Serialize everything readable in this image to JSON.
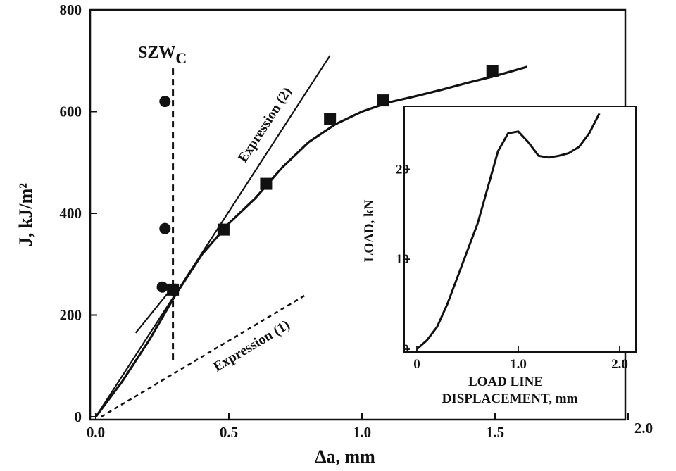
{
  "chart_data": [
    {
      "type": "scatter",
      "xlabel": "Δa, mm",
      "ylabel": "J, kJ/m²",
      "xlim": [
        0,
        2.0
      ],
      "ylim": [
        0,
        800
      ],
      "xticks": [
        "0.0",
        "0.5",
        "1.0",
        "1.5",
        "2.0"
      ],
      "yticks": [
        "0",
        "200",
        "400",
        "600",
        "800"
      ],
      "series": [
        {
          "marker": "circle",
          "points": [
            [
              0.26,
              620
            ],
            [
              0.26,
              370
            ],
            [
              0.25,
              255
            ]
          ]
        },
        {
          "marker": "square",
          "points": [
            [
              0.29,
              250
            ],
            [
              0.48,
              368
            ],
            [
              0.64,
              458
            ],
            [
              0.88,
              585
            ],
            [
              1.08,
              622
            ],
            [
              1.49,
              680
            ]
          ]
        },
        {
          "style": "solid",
          "points": [
            [
              0.0,
              0
            ],
            [
              0.1,
              70
            ],
            [
              0.2,
              150
            ],
            [
              0.3,
              240
            ],
            [
              0.4,
              320
            ],
            [
              0.5,
              380
            ],
            [
              0.6,
              430
            ],
            [
              0.7,
              490
            ],
            [
              0.8,
              540
            ],
            [
              0.9,
              575
            ],
            [
              1.0,
              600
            ],
            [
              1.1,
              618
            ],
            [
              1.2,
              630
            ],
            [
              1.3,
              643
            ],
            [
              1.4,
              657
            ],
            [
              1.5,
              670
            ],
            [
              1.62,
              688
            ]
          ]
        },
        {
          "name": "Expression (2)",
          "style": "solid",
          "points": [
            [
              0.0,
              0
            ],
            [
              0.88,
              710
            ]
          ]
        },
        {
          "name": "Expression (1)",
          "style": "dashed",
          "points": [
            [
              0.02,
              0
            ],
            [
              0.79,
              240
            ]
          ]
        },
        {
          "name": "SZWC",
          "style": "dashed",
          "points": [
            [
              0.29,
              685
            ],
            [
              0.29,
              110
            ]
          ]
        },
        {
          "style": "solid",
          "points": [
            [
              0.15,
              165
            ],
            [
              0.3,
              262
            ]
          ]
        }
      ],
      "annotations": {
        "szw_main": "SZW",
        "szw_sub": "C"
      }
    },
    {
      "type": "line",
      "xlabel_line1": "LOAD LINE",
      "xlabel_line2": "DISPLACEMENT, mm",
      "ylabel": "LOAD, kN",
      "xlim": [
        0,
        2.0
      ],
      "ylim": [
        0,
        27
      ],
      "xticks": [
        "0",
        "1.0",
        "2.0"
      ],
      "yticks": [
        "0",
        "10",
        "20"
      ],
      "series": [
        {
          "points": [
            [
              0.0,
              0
            ],
            [
              0.1,
              1
            ],
            [
              0.2,
              2.5
            ],
            [
              0.3,
              5
            ],
            [
              0.4,
              8
            ],
            [
              0.5,
              11
            ],
            [
              0.6,
              14
            ],
            [
              0.7,
              18
            ],
            [
              0.8,
              22
            ],
            [
              0.9,
              24
            ],
            [
              1.0,
              24.2
            ],
            [
              1.1,
              23
            ],
            [
              1.2,
              21.5
            ],
            [
              1.3,
              21.3
            ],
            [
              1.4,
              21.5
            ],
            [
              1.5,
              21.8
            ],
            [
              1.6,
              22.5
            ],
            [
              1.7,
              24
            ],
            [
              1.8,
              26.2
            ]
          ]
        }
      ]
    }
  ]
}
